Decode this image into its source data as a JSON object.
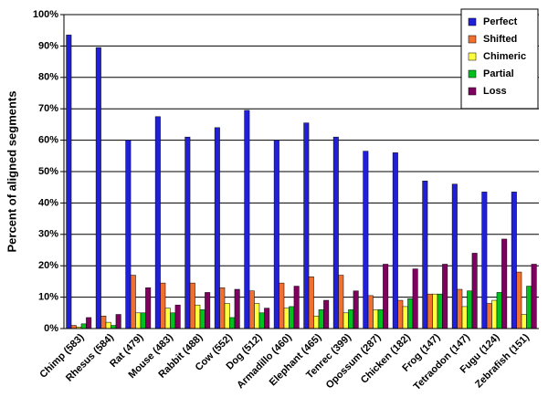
{
  "chart_data": {
    "type": "bar",
    "y_label": "Percent of aligned segments",
    "categories": [
      "Chimp (583)",
      "Rhesus (584)",
      "Rat (479)",
      "Mouse (483)",
      "Rabbit (488)",
      "Cow (552)",
      "Dog (512)",
      "Armadillo (460)",
      "Elephant (465)",
      "Tenrec (399)",
      "Opossum (287)",
      "Chicken (182)",
      "Frog (147)",
      "Tetraodon (147)",
      "Fugu (124)",
      "Zebrafish (151)"
    ],
    "series": [
      {
        "name": "Perfect",
        "color": "#2020d8",
        "values": [
          93.5,
          89.5,
          60,
          67.5,
          61,
          64,
          69.5,
          60,
          65.5,
          61,
          56.5,
          56,
          47,
          46,
          43.5,
          43.5
        ]
      },
      {
        "name": "Shifted",
        "color": "#f07030",
        "values": [
          1,
          4,
          17,
          14.5,
          14.5,
          13,
          12,
          14.5,
          16.5,
          17,
          10.5,
          9,
          11,
          12.5,
          8,
          18
        ]
      },
      {
        "name": "Chimeric",
        "color": "#ffff40",
        "values": [
          0.5,
          2,
          5,
          6.5,
          7.5,
          8,
          8,
          6.5,
          4,
          5,
          6,
          7,
          11,
          7,
          9,
          4.5
        ]
      },
      {
        "name": "Partial",
        "color": "#00c020",
        "values": [
          1.5,
          1,
          5,
          5,
          6,
          3.5,
          5,
          7,
          6,
          6,
          6,
          9.5,
          11,
          12,
          11.5,
          13.5
        ]
      },
      {
        "name": "Loss",
        "color": "#800060",
        "values": [
          3.5,
          4.5,
          13,
          7.5,
          11.5,
          12.5,
          6.5,
          13.5,
          9,
          12,
          20.5,
          19,
          20.5,
          24,
          28.5,
          20.5
        ]
      }
    ],
    "ylim": [
      0,
      100
    ],
    "yticks": [
      {
        "value": 0,
        "label": "0%"
      },
      {
        "value": 10,
        "label": "10%"
      },
      {
        "value": 20,
        "label": "20%"
      },
      {
        "value": 30,
        "label": "30%"
      },
      {
        "value": 40,
        "label": "40%"
      },
      {
        "value": 50,
        "label": "50%"
      },
      {
        "value": 60,
        "label": "60%"
      },
      {
        "value": 70,
        "label": "70%"
      },
      {
        "value": 80,
        "label": "80%"
      },
      {
        "value": 90,
        "label": "90%"
      },
      {
        "value": 100,
        "label": "100%"
      }
    ],
    "grid": true,
    "legend": "upper right"
  }
}
